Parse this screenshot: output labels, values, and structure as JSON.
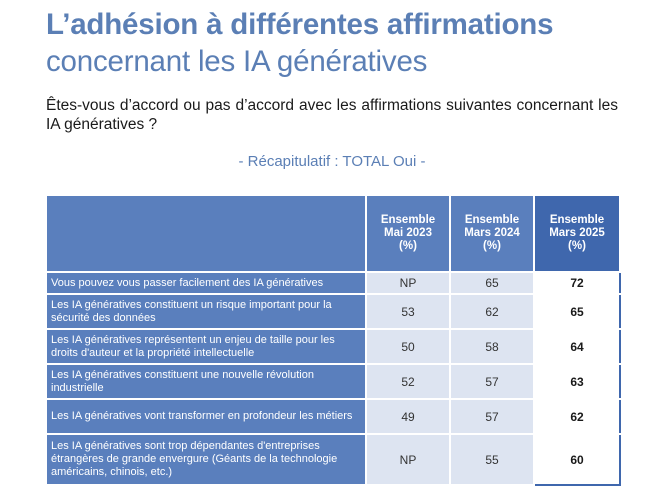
{
  "title": {
    "line1": "L’adhésion à différentes affirmations",
    "line2": "concernant les IA génératives"
  },
  "question": "Êtes-vous d’accord ou pas d’accord avec les affirmations suivantes concernant les IA génératives ?",
  "subtitle": "- Récapitulatif : TOTAL Oui -",
  "table": {
    "columns": [
      {
        "line1": "Ensemble",
        "line2": "Mai 2023",
        "line3": "(%)"
      },
      {
        "line1": "Ensemble",
        "line2": "Mars 2024",
        "line3": "(%)"
      },
      {
        "line1": "Ensemble",
        "line2": "Mars 2025",
        "line3": "(%)"
      }
    ],
    "rows": [
      {
        "label": "Vous pouvez vous passer facilement des IA génératives",
        "v2023": "NP",
        "v2024": "65",
        "v2025": "72"
      },
      {
        "label": "Les IA génératives constituent un risque important pour la sécurité des données",
        "v2023": "53",
        "v2024": "62",
        "v2025": "65"
      },
      {
        "label": "Les IA génératives représentent un enjeu de taille pour les droits d'auteur et la propriété intellectuelle",
        "v2023": "50",
        "v2024": "58",
        "v2025": "64"
      },
      {
        "label": "Les IA génératives constituent une nouvelle révolution industrielle",
        "v2023": "52",
        "v2024": "57",
        "v2025": "63"
      },
      {
        "label": "Les IA génératives vont transformer en profondeur les métiers",
        "v2023": "49",
        "v2024": "57",
        "v2025": "62"
      },
      {
        "label": "Les IA génératives sont trop dépendantes d'entreprises étrangères de grande envergure (Géants de la technologie américains, chinois, etc.)",
        "v2023": "NP",
        "v2024": "55",
        "v2025": "60"
      }
    ]
  },
  "colors": {
    "title": "#5b7fb5",
    "header": "#5a7fbd",
    "header_highlight": "#3f67ad",
    "cell": "#dde4f1"
  }
}
